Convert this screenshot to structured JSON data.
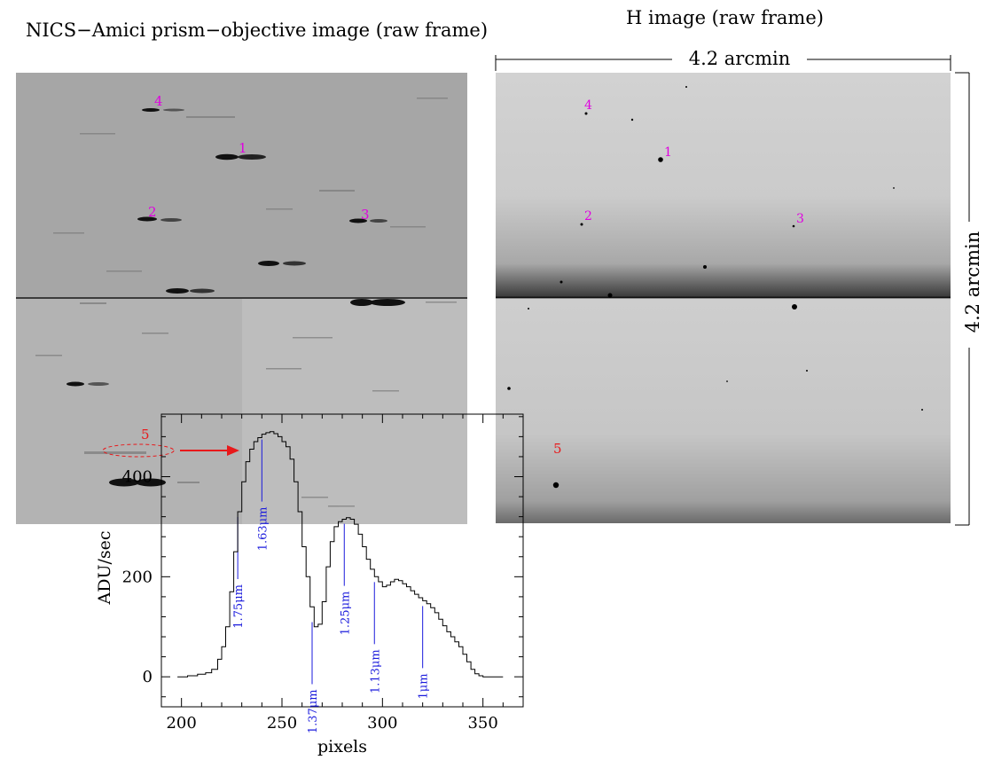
{
  "titles": {
    "left": "NICS−Amici prism−objective image (raw frame)",
    "right": "H image (raw frame)"
  },
  "scale": {
    "top": "4.2 arcmin",
    "side": "4.2 arcmin"
  },
  "colors": {
    "object_labels": "#e000e0",
    "highlight": "#e8191b",
    "wavelength_marks": "#1a1adc",
    "spectrum_line": "#000000"
  },
  "left_image": {
    "labels": [
      {
        "id": "4",
        "text": "4"
      },
      {
        "id": "1",
        "text": "1"
      },
      {
        "id": "2",
        "text": "2"
      },
      {
        "id": "3",
        "text": "3"
      },
      {
        "id": "5",
        "text": "5"
      }
    ]
  },
  "right_image": {
    "labels": [
      {
        "id": "4",
        "text": "4"
      },
      {
        "id": "1",
        "text": "1"
      },
      {
        "id": "2",
        "text": "2"
      },
      {
        "id": "3",
        "text": "3"
      },
      {
        "id": "5",
        "text": "5"
      }
    ]
  },
  "chart_data": {
    "type": "line",
    "xlabel": "pixels",
    "ylabel": "ADU/sec",
    "xlim": [
      190,
      370
    ],
    "ylim": [
      -60,
      525
    ],
    "xticks": [
      "200",
      "250",
      "300",
      "350"
    ],
    "xtick_values": [
      200,
      250,
      300,
      350
    ],
    "yticks": [
      "0",
      "200",
      "400"
    ],
    "ytick_values": [
      0,
      200,
      400
    ],
    "series": [
      {
        "x": [
          198,
          203,
          208,
          212,
          215,
          218,
          220,
          222,
          224,
          226,
          228,
          230,
          232,
          234,
          236,
          238,
          240,
          242,
          244,
          246,
          248,
          250,
          252,
          254,
          256,
          258,
          260,
          262,
          264,
          266,
          268,
          270,
          272,
          274,
          276,
          278,
          280,
          282,
          284,
          286,
          288,
          290,
          292,
          294,
          296,
          298,
          300,
          302,
          304,
          306,
          308,
          310,
          312,
          314,
          316,
          318,
          320,
          322,
          324,
          326,
          328,
          330,
          332,
          334,
          336,
          338,
          340,
          342,
          344,
          346,
          348,
          350,
          352,
          354,
          356,
          358,
          360
        ],
        "y": [
          0,
          2,
          5,
          8,
          15,
          35,
          60,
          100,
          170,
          250,
          330,
          390,
          430,
          455,
          470,
          478,
          485,
          488,
          490,
          486,
          480,
          470,
          460,
          435,
          390,
          330,
          260,
          200,
          140,
          100,
          105,
          150,
          220,
          270,
          300,
          310,
          315,
          318,
          315,
          305,
          285,
          260,
          235,
          215,
          200,
          190,
          180,
          183,
          190,
          195,
          192,
          186,
          180,
          172,
          165,
          158,
          152,
          146,
          138,
          128,
          115,
          102,
          90,
          80,
          70,
          60,
          45,
          30,
          15,
          6,
          2,
          0,
          0,
          0,
          0,
          0,
          0
        ]
      }
    ],
    "annotations": [
      {
        "label": "1.75μm",
        "x": 228
      },
      {
        "label": "1.63μm",
        "x": 240
      },
      {
        "label": "1.37μm",
        "x": 265
      },
      {
        "label": "1.25μm",
        "x": 281
      },
      {
        "label": "1.13μm",
        "x": 296
      },
      {
        "label": "1μm",
        "x": 320
      }
    ]
  }
}
